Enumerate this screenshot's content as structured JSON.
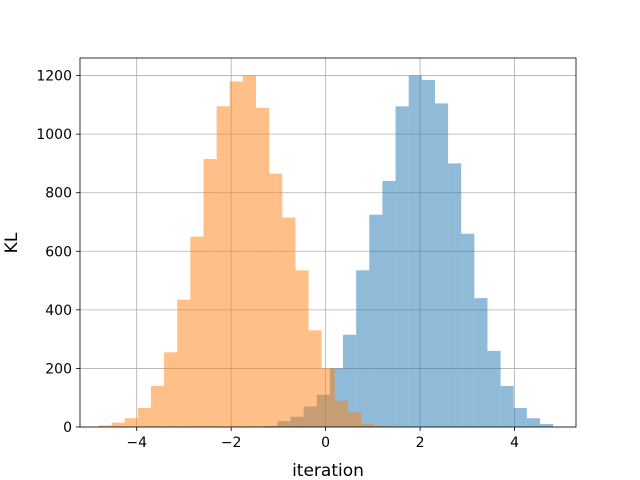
{
  "chart_data": {
    "type": "bar",
    "title": "",
    "xlabel": "iteration",
    "ylabel": "KL",
    "xlim": [
      -5.2,
      5.3
    ],
    "ylim": [
      0,
      1260
    ],
    "grid": true,
    "xticks": [
      -4,
      -2,
      0,
      2,
      4
    ],
    "xtick_labels": [
      "−4",
      "−2",
      "0",
      "2",
      "4"
    ],
    "yticks": [
      0,
      200,
      400,
      600,
      800,
      1000,
      1200
    ],
    "ytick_labels": [
      "0",
      "200",
      "400",
      "600",
      "800",
      "1000",
      "1200"
    ],
    "series": [
      {
        "color": "#1f77b4",
        "alpha": 0.5,
        "bin_edges": [
          -1.3,
          -1.022,
          -0.744,
          -0.466,
          -0.188,
          0.09,
          0.368,
          0.646,
          0.924,
          1.202,
          1.48,
          1.758,
          2.036,
          2.314,
          2.592,
          2.87,
          3.148,
          3.426,
          3.704,
          3.982,
          4.26,
          4.538,
          4.816
        ],
        "values": [
          3,
          20,
          35,
          70,
          110,
          200,
          315,
          535,
          725,
          840,
          1095,
          1200,
          1185,
          1105,
          900,
          660,
          440,
          260,
          140,
          65,
          30,
          10
        ]
      },
      {
        "color": "#ff7f0e",
        "alpha": 0.5,
        "bin_edges": [
          -4.81,
          -4.532,
          -4.254,
          -3.976,
          -3.698,
          -3.42,
          -3.142,
          -2.864,
          -2.586,
          -2.308,
          -2.03,
          -1.752,
          -1.474,
          -1.196,
          -0.918,
          -0.64,
          -0.362,
          -0.084,
          0.194,
          0.472,
          0.75,
          1.028,
          1.306
        ],
        "values": [
          5,
          15,
          30,
          65,
          140,
          255,
          435,
          650,
          915,
          1095,
          1180,
          1200,
          1090,
          865,
          715,
          535,
          330,
          200,
          90,
          50,
          10,
          3
        ]
      }
    ]
  }
}
